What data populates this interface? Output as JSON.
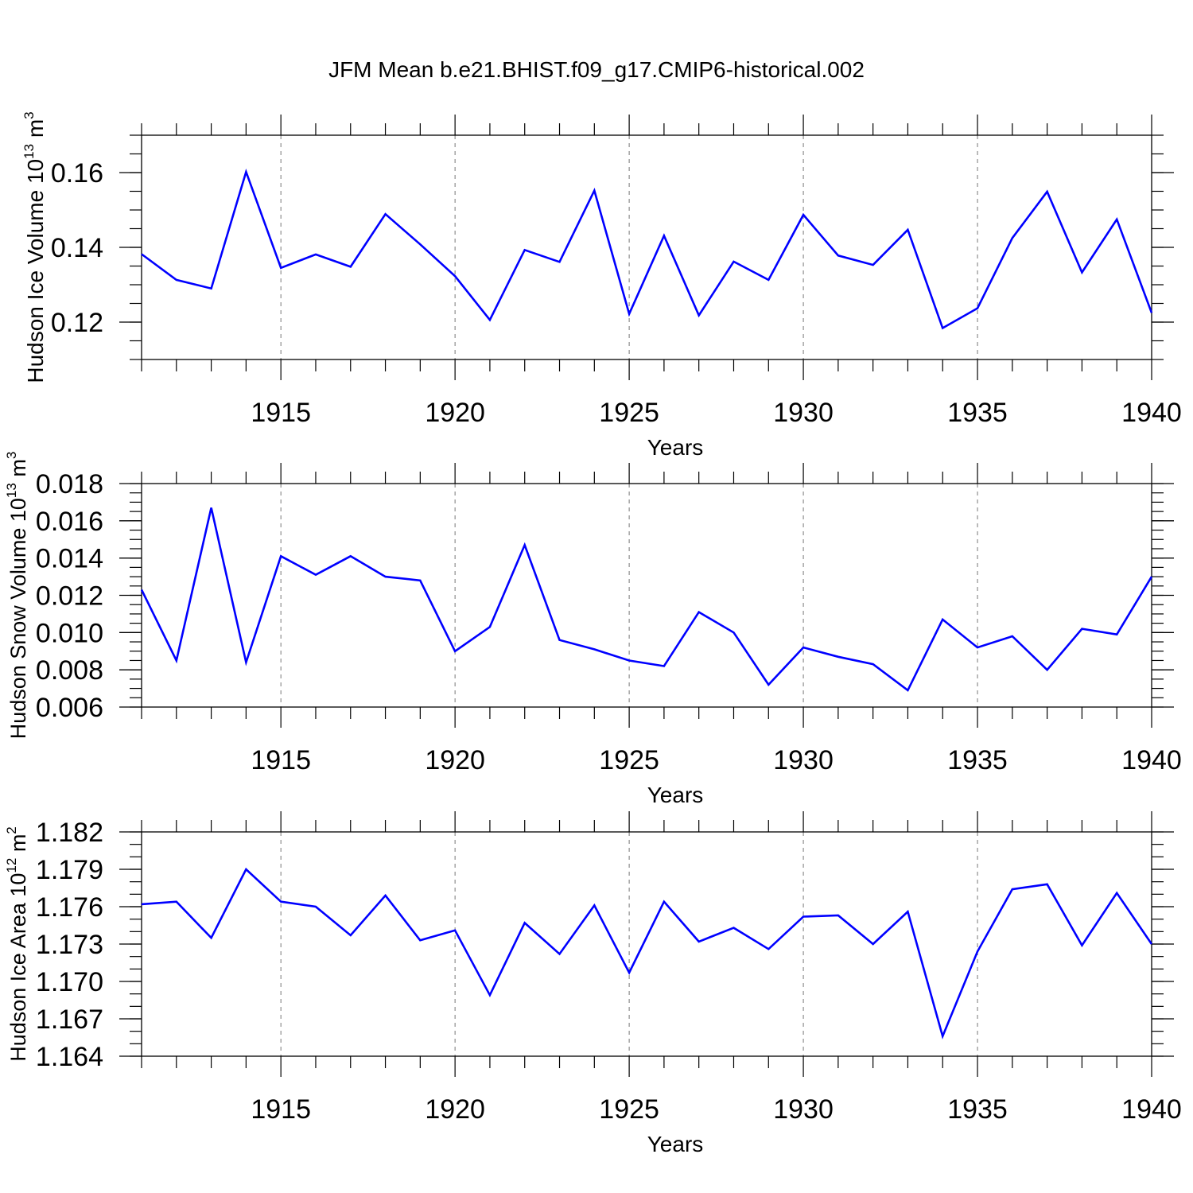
{
  "title": "JFM Mean b.e21.BHIST.f09_g17.CMIP6-historical.002",
  "line_color": "#0000ff",
  "chart_data": [
    {
      "type": "line",
      "name": "ice-volume",
      "ylabel_main": "Hudson Ice Volume 10",
      "ylabel_exp": "13",
      "ylabel_unit": " m",
      "ylabel_unit_exp": "3",
      "xlabel": "Years",
      "xlim": [
        1911,
        1940
      ],
      "ylim": [
        0.11,
        0.17
      ],
      "xticks": [
        1915,
        1920,
        1925,
        1930,
        1935,
        1940
      ],
      "xtick_labels": [
        "1915",
        "1920",
        "1925",
        "1930",
        "1935",
        "1940"
      ],
      "yticks": [
        0.12,
        0.14,
        0.16
      ],
      "ytick_labels": [
        "0.12",
        "0.14",
        "0.16"
      ],
      "yminor_step": 0.005,
      "x": [
        1911,
        1912,
        1913,
        1914,
        1915,
        1916,
        1917,
        1918,
        1919,
        1920,
        1921,
        1922,
        1923,
        1924,
        1925,
        1926,
        1927,
        1928,
        1929,
        1930,
        1931,
        1932,
        1933,
        1934,
        1935,
        1936,
        1937,
        1938,
        1939,
        1940
      ],
      "values": [
        0.1382,
        0.1313,
        0.129,
        0.1602,
        0.1345,
        0.1381,
        0.1348,
        0.1489,
        0.1408,
        0.1323,
        0.1206,
        0.1393,
        0.1361,
        0.1552,
        0.1222,
        0.1431,
        0.1218,
        0.1362,
        0.1313,
        0.1487,
        0.1378,
        0.1353,
        0.1447,
        0.1184,
        0.1237,
        0.1425,
        0.1549,
        0.1333,
        0.1475,
        0.1225
      ]
    },
    {
      "type": "line",
      "name": "snow-volume",
      "ylabel_main": "Hudson Snow Volume 10",
      "ylabel_exp": "13",
      "ylabel_unit": " m",
      "ylabel_unit_exp": "3",
      "xlabel": "Years",
      "xlim": [
        1911,
        1940
      ],
      "ylim": [
        0.006,
        0.018
      ],
      "xticks": [
        1915,
        1920,
        1925,
        1930,
        1935,
        1940
      ],
      "xtick_labels": [
        "1915",
        "1920",
        "1925",
        "1930",
        "1935",
        "1940"
      ],
      "yticks": [
        0.006,
        0.008,
        0.01,
        0.012,
        0.014,
        0.016,
        0.018
      ],
      "ytick_labels": [
        "0.006",
        "0.008",
        "0.010",
        "0.012",
        "0.014",
        "0.016",
        "0.018"
      ],
      "yminor_step": 0.0005,
      "x": [
        1911,
        1912,
        1913,
        1914,
        1915,
        1916,
        1917,
        1918,
        1919,
        1920,
        1921,
        1922,
        1923,
        1924,
        1925,
        1926,
        1927,
        1928,
        1929,
        1930,
        1931,
        1932,
        1933,
        1934,
        1935,
        1936,
        1937,
        1938,
        1939,
        1940
      ],
      "values": [
        0.0123,
        0.0085,
        0.0167,
        0.0084,
        0.0141,
        0.0131,
        0.0141,
        0.013,
        0.0128,
        0.009,
        0.0103,
        0.0147,
        0.0096,
        0.0091,
        0.0085,
        0.0082,
        0.0111,
        0.01,
        0.0072,
        0.0092,
        0.0087,
        0.0083,
        0.0069,
        0.0107,
        0.0092,
        0.0098,
        0.008,
        0.0102,
        0.0099,
        0.013
      ]
    },
    {
      "type": "line",
      "name": "ice-area",
      "ylabel_main": "Hudson Ice Area 10",
      "ylabel_exp": "12",
      "ylabel_unit": " m",
      "ylabel_unit_exp": "2",
      "xlabel": "Years",
      "xlim": [
        1911,
        1940
      ],
      "ylim": [
        1.164,
        1.182
      ],
      "xticks": [
        1915,
        1920,
        1925,
        1930,
        1935,
        1940
      ],
      "xtick_labels": [
        "1915",
        "1920",
        "1925",
        "1930",
        "1935",
        "1940"
      ],
      "yticks": [
        1.164,
        1.167,
        1.17,
        1.173,
        1.176,
        1.179,
        1.182
      ],
      "ytick_labels": [
        "1.164",
        "1.167",
        "1.170",
        "1.173",
        "1.176",
        "1.179",
        "1.182"
      ],
      "yminor_step": 0.001,
      "x": [
        1911,
        1912,
        1913,
        1914,
        1915,
        1916,
        1917,
        1918,
        1919,
        1920,
        1921,
        1922,
        1923,
        1924,
        1925,
        1926,
        1927,
        1928,
        1929,
        1930,
        1931,
        1932,
        1933,
        1934,
        1935,
        1936,
        1937,
        1938,
        1939,
        1940
      ],
      "values": [
        1.1762,
        1.1764,
        1.1735,
        1.179,
        1.1764,
        1.176,
        1.1737,
        1.1769,
        1.1733,
        1.1741,
        1.1689,
        1.1747,
        1.1722,
        1.1761,
        1.1707,
        1.1764,
        1.1732,
        1.1743,
        1.1726,
        1.1752,
        1.1753,
        1.173,
        1.1756,
        1.1656,
        1.1724,
        1.1774,
        1.1778,
        1.1729,
        1.1771,
        1.173
      ]
    }
  ]
}
